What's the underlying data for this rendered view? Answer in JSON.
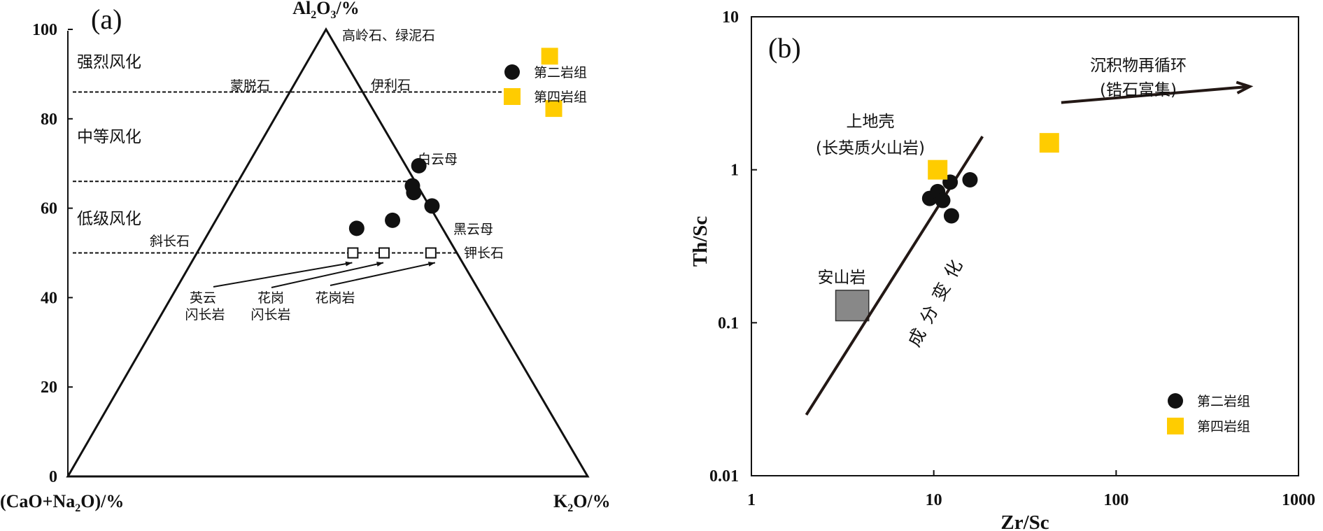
{
  "chart_data": [
    {
      "type": "ternary",
      "panel_label": "(a)",
      "axes": {
        "top": "Al",
        "top_sub1": "2",
        "top_mid": "O",
        "top_sub2": "3",
        "top_tail": "/%",
        "left_head": "(CaO+Na",
        "left_sub": "2",
        "left_tail": "O)/%",
        "right_head": "K",
        "right_sub": "2",
        "right_tail": "O/%"
      },
      "ylim": [
        0,
        100
      ],
      "y_ticks": [
        0,
        20,
        40,
        60,
        80,
        100
      ],
      "zones": [
        {
          "label": "强烈风化",
          "y": 92
        },
        {
          "label": "中等风化",
          "y": 76
        },
        {
          "label": "低级风化",
          "y": 57.5
        }
      ],
      "boundary_lines": [
        86,
        66,
        50
      ],
      "minerals": {
        "kaolinite_chlorite": "高岭石、绿泥石",
        "montmorillonite": "蒙脱石",
        "illite": "伊利石",
        "muscovite": "白云母",
        "biotite": "黑云母",
        "plagioclase": "斜长石",
        "kfeldspar": "钾长石"
      },
      "reference_rocks": [
        {
          "label1": "英云",
          "label2": "闪长岩",
          "k2o": 30,
          "al2o3": 50
        },
        {
          "label1": "花岗",
          "label2": "闪长岩",
          "k2o": 36,
          "al2o3": 50
        },
        {
          "label1": "花岗岩",
          "label2": "",
          "k2o": 45,
          "al2o3": 50
        }
      ],
      "series": [
        {
          "name": "第二岩组",
          "marker": "circle",
          "color": "#111111",
          "points": [
            [
              33,
              69.5
            ],
            [
              34,
              65
            ],
            [
              35,
              63.5
            ],
            [
              40,
              60.5
            ],
            [
              28,
              55.5
            ],
            [
              34,
              57.3
            ]
          ]
        },
        {
          "name": "第四岩组",
          "marker": "square",
          "color": "#FFCC00",
          "points": [
            [
              46,
              94
            ],
            [
              52.6,
              82.3
            ]
          ]
        }
      ],
      "legend_position": "top-right"
    },
    {
      "type": "scatter",
      "panel_label": "(b)",
      "xlabel": "Zr/Sc",
      "ylabel": "Th/Sc",
      "xscale": "log",
      "yscale": "log",
      "xlim": [
        1,
        1000
      ],
      "ylim": [
        0.01,
        10
      ],
      "x_ticks": [
        "1",
        "10",
        "100",
        "1000"
      ],
      "y_ticks": [
        "0.01",
        "0.1",
        "1",
        "10"
      ],
      "series": [
        {
          "name": "第二岩组",
          "marker": "circle",
          "color": "#111111",
          "points": [
            [
              9.5,
              0.65
            ],
            [
              10.5,
              0.72
            ],
            [
              11.2,
              0.63
            ],
            [
              12.3,
              0.83
            ],
            [
              15.8,
              0.86
            ],
            [
              12.5,
              0.5
            ]
          ]
        },
        {
          "name": "第四岩组",
          "marker": "square",
          "color": "#FFCC00",
          "points": [
            [
              10.5,
              1.0
            ],
            [
              43,
              1.5
            ]
          ]
        }
      ],
      "trend_line": {
        "label": "成分变化",
        "from": [
          2,
          0.025
        ],
        "to": [
          18.5,
          1.65
        ]
      },
      "andesite_box": {
        "label": "安山岩",
        "x": [
          2.9,
          4.4
        ],
        "y": [
          0.103,
          0.163
        ],
        "color": "#888888"
      },
      "upper_crust": {
        "label1": "上地壳",
        "label2": "(长英质火山岩)"
      },
      "recycling": {
        "label1": "沉积物再循环",
        "label2": "(锆石富集)",
        "from": [
          50,
          2.75
        ],
        "to": [
          540,
          3.5
        ]
      },
      "legend_position": "bottom-right"
    }
  ]
}
